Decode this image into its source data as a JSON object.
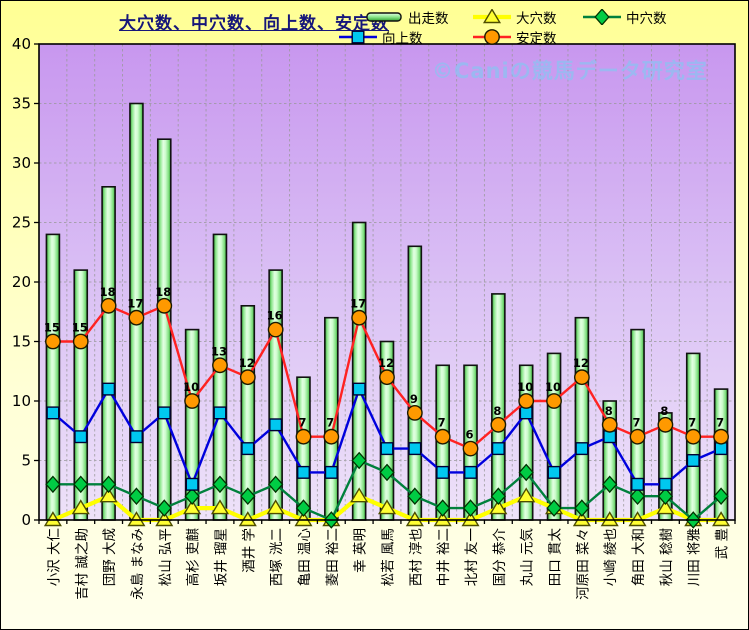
{
  "title": "大穴数、中穴数、向上数、安定数",
  "watermark": "©Caniの競馬データ研究室",
  "legend": {
    "items": [
      {
        "label": "出走数"
      },
      {
        "label": "大穴数"
      },
      {
        "label": "中穴数"
      },
      {
        "label": "向上数"
      },
      {
        "label": "安定数"
      }
    ]
  },
  "colors": {
    "outer_background_top": "#ffff94",
    "outer_background_bottom": "#ffffec",
    "plot_background_top": "#c897ef",
    "plot_background_bottom": "#eee2f9",
    "gridline": "#989898",
    "axis": "#000000",
    "title_text": "#16167a",
    "watermark_text": "#94bdf2"
  },
  "chart_data": {
    "type": "bar",
    "subtype": "bar-line-combo",
    "title": "大穴数、中穴数、向上数、安定数",
    "xlabel": "",
    "ylabel": "",
    "ylim": [
      0,
      40
    ],
    "ytick_step": 5,
    "grid": true,
    "legend_position": "top-right",
    "categories": [
      "小沢 大仁",
      "吉村 誠之助",
      "団野 大成",
      "永島 まなみ",
      "松山 弘平",
      "高杉 吏麒",
      "坂井 瑠星",
      "酒井 学",
      "西塚 洸二",
      "亀田 温心",
      "菱田 裕二",
      "幸 英明",
      "松若 風馬",
      "西村 淳也",
      "中井 裕二",
      "北村 友一",
      "国分 恭介",
      "丸山 元気",
      "田口 貫太",
      "河原田 菜々",
      "小崎 綾也",
      "角田 大和",
      "秋山 稔樹",
      "川田 将雅",
      "武 豊"
    ],
    "series": [
      {
        "name": "出走数",
        "type": "bar",
        "marker": "bar",
        "line_color": "#111111",
        "marker_color": "#9dee9d",
        "values": [
          24,
          21,
          28,
          35,
          32,
          16,
          24,
          18,
          21,
          12,
          17,
          25,
          15,
          23,
          13,
          13,
          19,
          13,
          14,
          17,
          10,
          16,
          9,
          14,
          11
        ]
      },
      {
        "name": "大穴数",
        "type": "line",
        "marker": "triangle",
        "line_color": "#ffff00",
        "marker_color": "#ffff33",
        "marker_stroke": "#4d4d00",
        "values": [
          0,
          1,
          2,
          0,
          0,
          1,
          1,
          0,
          1,
          0,
          0,
          2,
          1,
          0,
          0,
          0,
          1,
          2,
          1,
          0,
          0,
          0,
          1,
          0,
          0
        ]
      },
      {
        "name": "中穴数",
        "type": "line",
        "marker": "diamond",
        "line_color": "#00803c",
        "marker_color": "#00cc44",
        "marker_stroke": "#003300",
        "values": [
          3,
          3,
          3,
          2,
          1,
          2,
          3,
          2,
          3,
          1,
          0,
          5,
          4,
          2,
          1,
          1,
          2,
          4,
          1,
          1,
          3,
          2,
          2,
          0,
          2
        ]
      },
      {
        "name": "向上数",
        "type": "line",
        "marker": "square",
        "line_color": "#0000dd",
        "marker_color": "#00c8f0",
        "marker_stroke": "#000033",
        "values": [
          9,
          7,
          11,
          7,
          9,
          3,
          9,
          6,
          8,
          4,
          4,
          11,
          6,
          6,
          4,
          4,
          6,
          9,
          4,
          6,
          7,
          3,
          3,
          5,
          6
        ]
      },
      {
        "name": "安定数",
        "type": "line",
        "marker": "circle",
        "line_color": "#ff2222",
        "marker_color": "#ff9900",
        "marker_stroke": "#1a1a00",
        "data_labels": true,
        "values": [
          15,
          15,
          18,
          17,
          18,
          10,
          13,
          12,
          16,
          7,
          7,
          17,
          12,
          9,
          7,
          6,
          8,
          10,
          10,
          12,
          8,
          7,
          8,
          7,
          7
        ]
      }
    ]
  }
}
